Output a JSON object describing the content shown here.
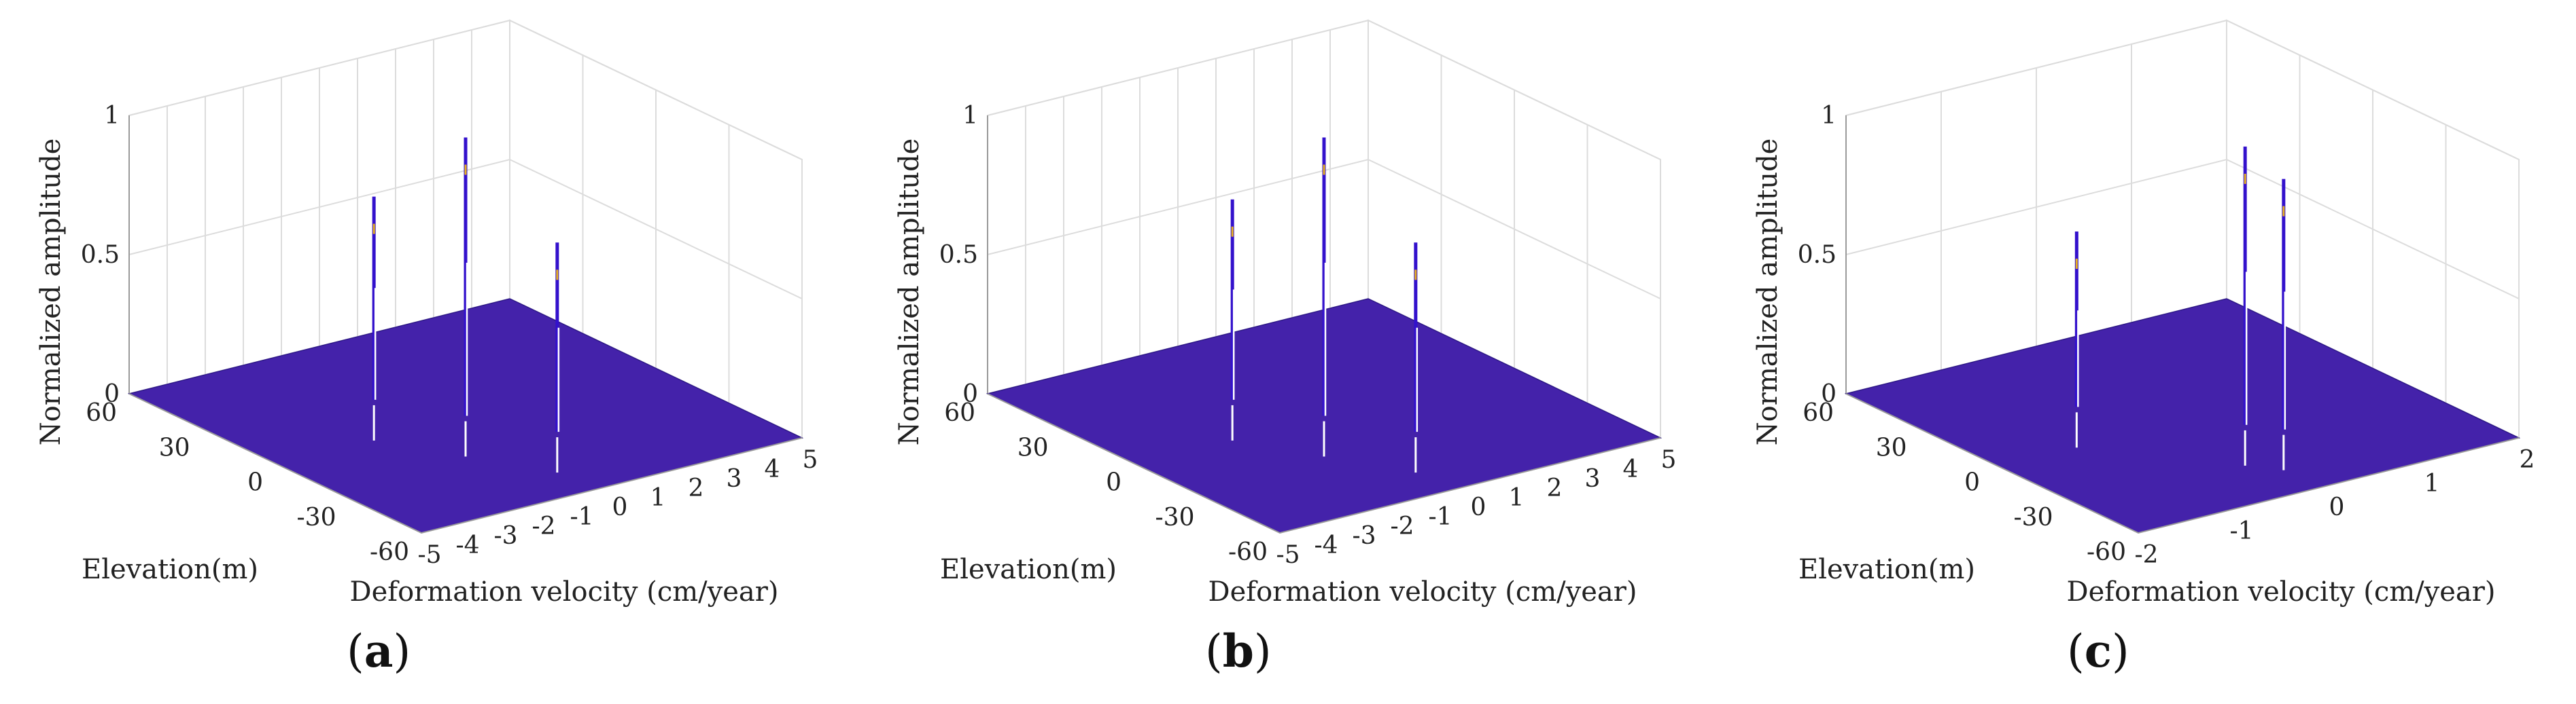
{
  "chart_data": [
    {
      "type": "3d-surface",
      "panel": "a",
      "zlabel": "Normalized amplitude",
      "ylabel": "Elevation(m)",
      "xlabel": "Deformation velocity (cm/year)",
      "zlim": [
        0,
        1
      ],
      "z_ticks": [
        "0",
        "0.5",
        "1"
      ],
      "ylim": [
        -60,
        60
      ],
      "y_ticks": [
        "60",
        "30",
        "0",
        "-30",
        "-60"
      ],
      "xlim": [
        -5,
        5
      ],
      "x_ticks": [
        "-5",
        "-4",
        "-3",
        "-2",
        "-1",
        "0",
        "1",
        "2",
        "3",
        "4",
        "5"
      ],
      "surface_color": "#4422aa",
      "peaks": [
        {
          "x": -1.0,
          "y": 22,
          "z": 0.73
        },
        {
          "x": 0.0,
          "y": 0,
          "z": 1.0
        },
        {
          "x": 1.0,
          "y": -22,
          "z": 0.68
        }
      ]
    },
    {
      "type": "3d-surface",
      "panel": "b",
      "zlabel": "Normalized amplitude",
      "ylabel": "Elevation(m)",
      "xlabel": "Deformation velocity (cm/year)",
      "zlim": [
        0,
        1
      ],
      "z_ticks": [
        "0",
        "0.5",
        "1"
      ],
      "ylim": [
        -60,
        60
      ],
      "y_ticks": [
        "60",
        "30",
        "0",
        "-30",
        "-60"
      ],
      "xlim": [
        -5,
        5
      ],
      "x_ticks": [
        "-5",
        "-4",
        "-3",
        "-2",
        "-1",
        "0",
        "1",
        "2",
        "3",
        "4",
        "5"
      ],
      "surface_color": "#4422aa",
      "peaks": [
        {
          "x": -1.0,
          "y": 22,
          "z": 0.72
        },
        {
          "x": 0.0,
          "y": 0,
          "z": 1.0
        },
        {
          "x": 1.0,
          "y": -22,
          "z": 0.68
        }
      ]
    },
    {
      "type": "3d-surface",
      "panel": "c",
      "zlabel": "Normalized amplitude",
      "ylabel": "Elevation(m)",
      "xlabel": "Deformation velocity (cm/year)",
      "zlim": [
        0,
        1
      ],
      "z_ticks": [
        "0",
        "0.5",
        "1"
      ],
      "ylim": [
        -60,
        60
      ],
      "y_ticks": [
        "60",
        "30",
        "0",
        "-30",
        "-60"
      ],
      "xlim": [
        -2,
        2
      ],
      "x_ticks": [
        "-2",
        "-1",
        "0",
        "1",
        "2"
      ],
      "surface_color": "#4422aa",
      "peaks": [
        {
          "x": -0.6,
          "y": 20,
          "z": 0.63
        },
        {
          "x": 0.3,
          "y": -14,
          "z": 1.0
        },
        {
          "x": 0.5,
          "y": -22,
          "z": 0.9
        }
      ]
    }
  ],
  "captions": [
    {
      "open": "(",
      "letter": "a",
      "close": ")"
    },
    {
      "open": "(",
      "letter": "b",
      "close": ")"
    },
    {
      "open": "(",
      "letter": "c",
      "close": ")"
    }
  ]
}
